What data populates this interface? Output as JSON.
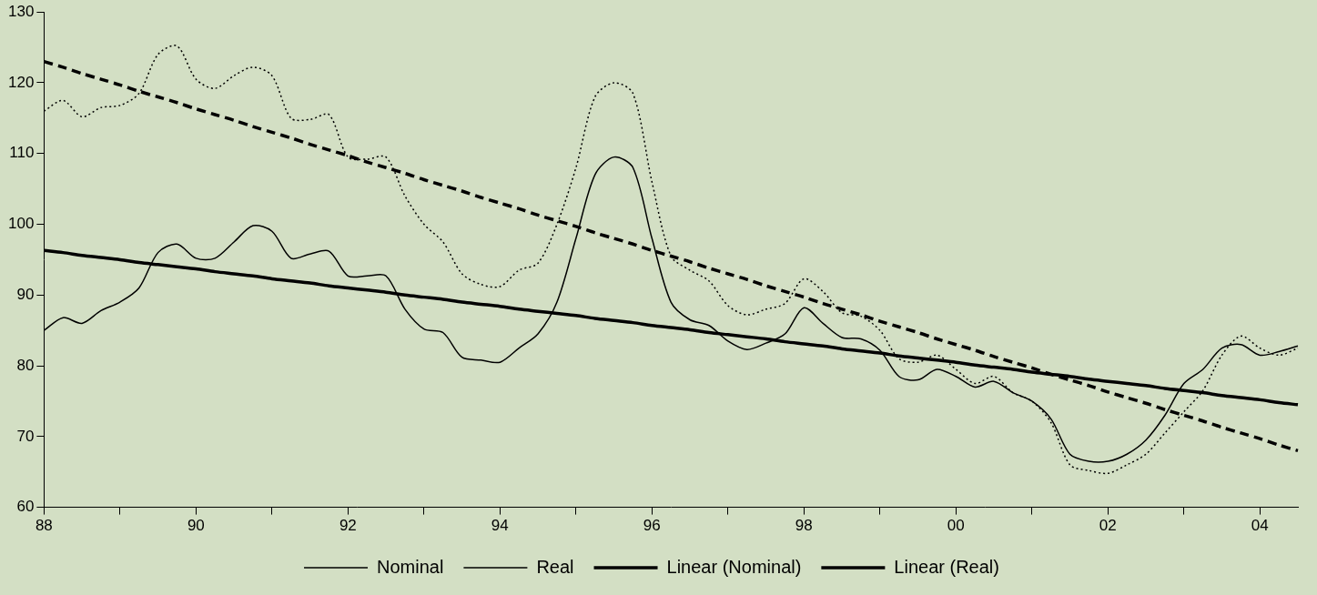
{
  "chart_data": {
    "type": "line",
    "categories": [
      "88",
      null,
      null,
      null,
      null,
      null,
      null,
      null,
      "90",
      null,
      null,
      null,
      null,
      null,
      null,
      null,
      "92",
      null,
      null,
      null,
      null,
      null,
      null,
      null,
      "94",
      null,
      null,
      null,
      null,
      null,
      null,
      null,
      "96",
      null,
      null,
      null,
      null,
      null,
      null,
      null,
      "98",
      null,
      null,
      null,
      null,
      null,
      null,
      null,
      "00",
      null,
      null,
      null,
      null,
      null,
      null,
      null,
      "02",
      null,
      null,
      null,
      null,
      null,
      null,
      null,
      "04",
      null,
      null
    ],
    "series": [
      {
        "name": "Nominal",
        "color": "#000000",
        "line_style": "solid",
        "values": [
          85,
          86.8,
          86,
          87.8,
          89,
          91,
          96,
          97.2,
          95.2,
          95.2,
          97.5,
          99.8,
          99,
          95.2,
          95.8,
          96.2,
          92.7,
          92.7,
          92.7,
          88,
          85.2,
          84.7,
          81.2,
          80.8,
          80.5,
          82.5,
          84.5,
          89,
          98,
          107,
          109.5,
          108,
          98,
          89,
          86.5,
          85.7,
          83.5,
          82.3,
          83.2,
          84.5,
          88.2,
          86,
          84,
          83.8,
          82.2,
          78.5,
          78,
          79.5,
          78.5,
          77,
          77.8,
          76.2,
          75,
          72.5,
          67.5,
          66.5,
          66.5,
          67.5,
          69.5,
          73,
          77.5,
          79.5,
          82.5,
          83,
          81.5,
          82,
          82.8
        ]
      },
      {
        "name": "Real",
        "color": "#000000",
        "line_style": "dotted",
        "values": [
          116,
          117.5,
          115.2,
          116.5,
          116.8,
          118.5,
          124,
          125.2,
          120.5,
          119.2,
          121,
          122.2,
          121,
          115,
          114.8,
          115.5,
          109.5,
          109.2,
          109.5,
          104,
          100,
          97.5,
          93,
          91.5,
          91.2,
          93.5,
          94.5,
          100,
          108,
          118,
          120,
          118.5,
          106,
          95.5,
          93.5,
          92,
          88.5,
          87.2,
          88,
          88.8,
          92.3,
          90.5,
          87.5,
          87,
          85,
          81,
          80.5,
          81.5,
          79.5,
          77.5,
          78.5,
          76.2,
          75,
          72,
          66,
          65.2,
          64.8,
          66,
          67.5,
          70.5,
          73.5,
          76.5,
          81.5,
          84.2,
          82.5,
          81.5,
          82.5
        ]
      },
      {
        "name": "Linear (Nominal)",
        "color": "#000000",
        "line_style": "solid",
        "values": [
          96.3,
          96.0,
          95.6,
          95.3,
          95.0,
          94.6,
          94.3,
          94.0,
          93.7,
          93.3,
          93.0,
          92.7,
          92.3,
          92.0,
          91.7,
          91.3,
          91.0,
          90.7,
          90.4,
          90.0,
          89.7,
          89.4,
          89.0,
          88.7,
          88.4,
          88.0,
          87.7,
          87.4,
          87.1,
          86.7,
          86.4,
          86.1,
          85.7,
          85.4,
          85.1,
          84.7,
          84.4,
          84.1,
          83.8,
          83.4,
          83.1,
          82.8,
          82.4,
          82.1,
          81.8,
          81.4,
          81.1,
          80.8,
          80.5,
          80.1,
          79.8,
          79.5,
          79.1,
          78.8,
          78.5,
          78.1,
          77.8,
          77.5,
          77.2,
          76.8,
          76.5,
          76.2,
          75.8,
          75.5,
          75.2,
          74.8,
          74.5
        ]
      },
      {
        "name": "Linear (Real)",
        "color": "#000000",
        "line_style": "dashed",
        "values": [
          123.0,
          122.2,
          121.3,
          120.5,
          119.7,
          118.8,
          118.0,
          117.2,
          116.3,
          115.5,
          114.7,
          113.8,
          113.0,
          112.2,
          111.3,
          110.5,
          109.7,
          108.8,
          108.0,
          107.2,
          106.3,
          105.5,
          104.7,
          103.8,
          103.0,
          102.2,
          101.3,
          100.5,
          99.7,
          98.8,
          98.0,
          97.2,
          96.3,
          95.5,
          94.7,
          93.8,
          93.0,
          92.2,
          91.3,
          90.5,
          89.7,
          88.8,
          88.0,
          87.2,
          86.3,
          85.5,
          84.7,
          83.8,
          83.0,
          82.2,
          81.3,
          80.5,
          79.7,
          78.8,
          78.0,
          77.2,
          76.3,
          75.5,
          74.7,
          73.8,
          73.0,
          72.2,
          71.3,
          70.5,
          69.7,
          68.8,
          68.0
        ]
      }
    ],
    "ylim": [
      60,
      130
    ],
    "yticks": [
      60,
      70,
      80,
      90,
      100,
      110,
      120,
      130
    ],
    "grid": false,
    "legend": "bottom"
  }
}
